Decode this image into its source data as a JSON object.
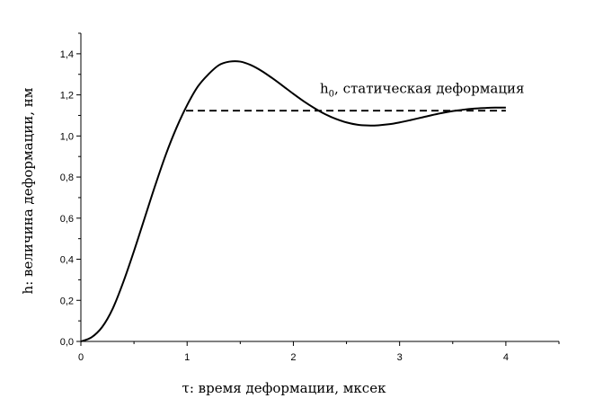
{
  "chart_data": {
    "type": "line",
    "xlabel": "τ: время деформации, мксек",
    "ylabel": "h: величина деформации, нм",
    "xlim": [
      0,
      4.5
    ],
    "ylim": [
      0,
      1.5
    ],
    "x_ticks": [
      0,
      1,
      2,
      3,
      4
    ],
    "x_tick_labels": [
      "0",
      "1",
      "2",
      "3",
      "4"
    ],
    "y_ticks": [
      0,
      0.2,
      0.4,
      0.6,
      0.8,
      1.0,
      1.2,
      1.4
    ],
    "y_tick_labels": [
      "0,0",
      "0,2",
      "0,4",
      "0,6",
      "0,8",
      "1,0",
      "1,2",
      "1,4"
    ],
    "grid": false,
    "series": [
      {
        "style": "solid",
        "x": [
          0,
          0.1,
          0.2,
          0.3,
          0.4,
          0.5,
          0.6,
          0.7,
          0.8,
          0.9,
          1.0,
          1.1,
          1.2,
          1.3,
          1.4,
          1.5,
          1.6,
          1.7,
          1.8,
          1.9,
          2.0,
          2.1,
          2.2,
          2.3,
          2.4,
          2.5,
          2.6,
          2.7,
          2.8,
          2.9,
          3.0,
          3.1,
          3.2,
          3.3,
          3.4,
          3.5,
          3.6,
          3.7,
          3.8,
          3.9,
          4.0
        ],
        "y": [
          0,
          0.02,
          0.07,
          0.16,
          0.29,
          0.44,
          0.6,
          0.76,
          0.91,
          1.04,
          1.15,
          1.24,
          1.3,
          1.345,
          1.362,
          1.362,
          1.345,
          1.317,
          1.282,
          1.244,
          1.205,
          1.168,
          1.135,
          1.106,
          1.083,
          1.066,
          1.055,
          1.051,
          1.052,
          1.057,
          1.066,
          1.077,
          1.089,
          1.101,
          1.112,
          1.121,
          1.128,
          1.133,
          1.136,
          1.138,
          1.138
        ]
      },
      {
        "style": "dashed",
        "x": [
          0.99,
          4.0
        ],
        "y": [
          1.123,
          1.123
        ]
      }
    ],
    "annotation": {
      "main": "h",
      "sub": "0",
      "rest": ", статическая деформация",
      "x": 2.25,
      "y": 1.21
    }
  }
}
